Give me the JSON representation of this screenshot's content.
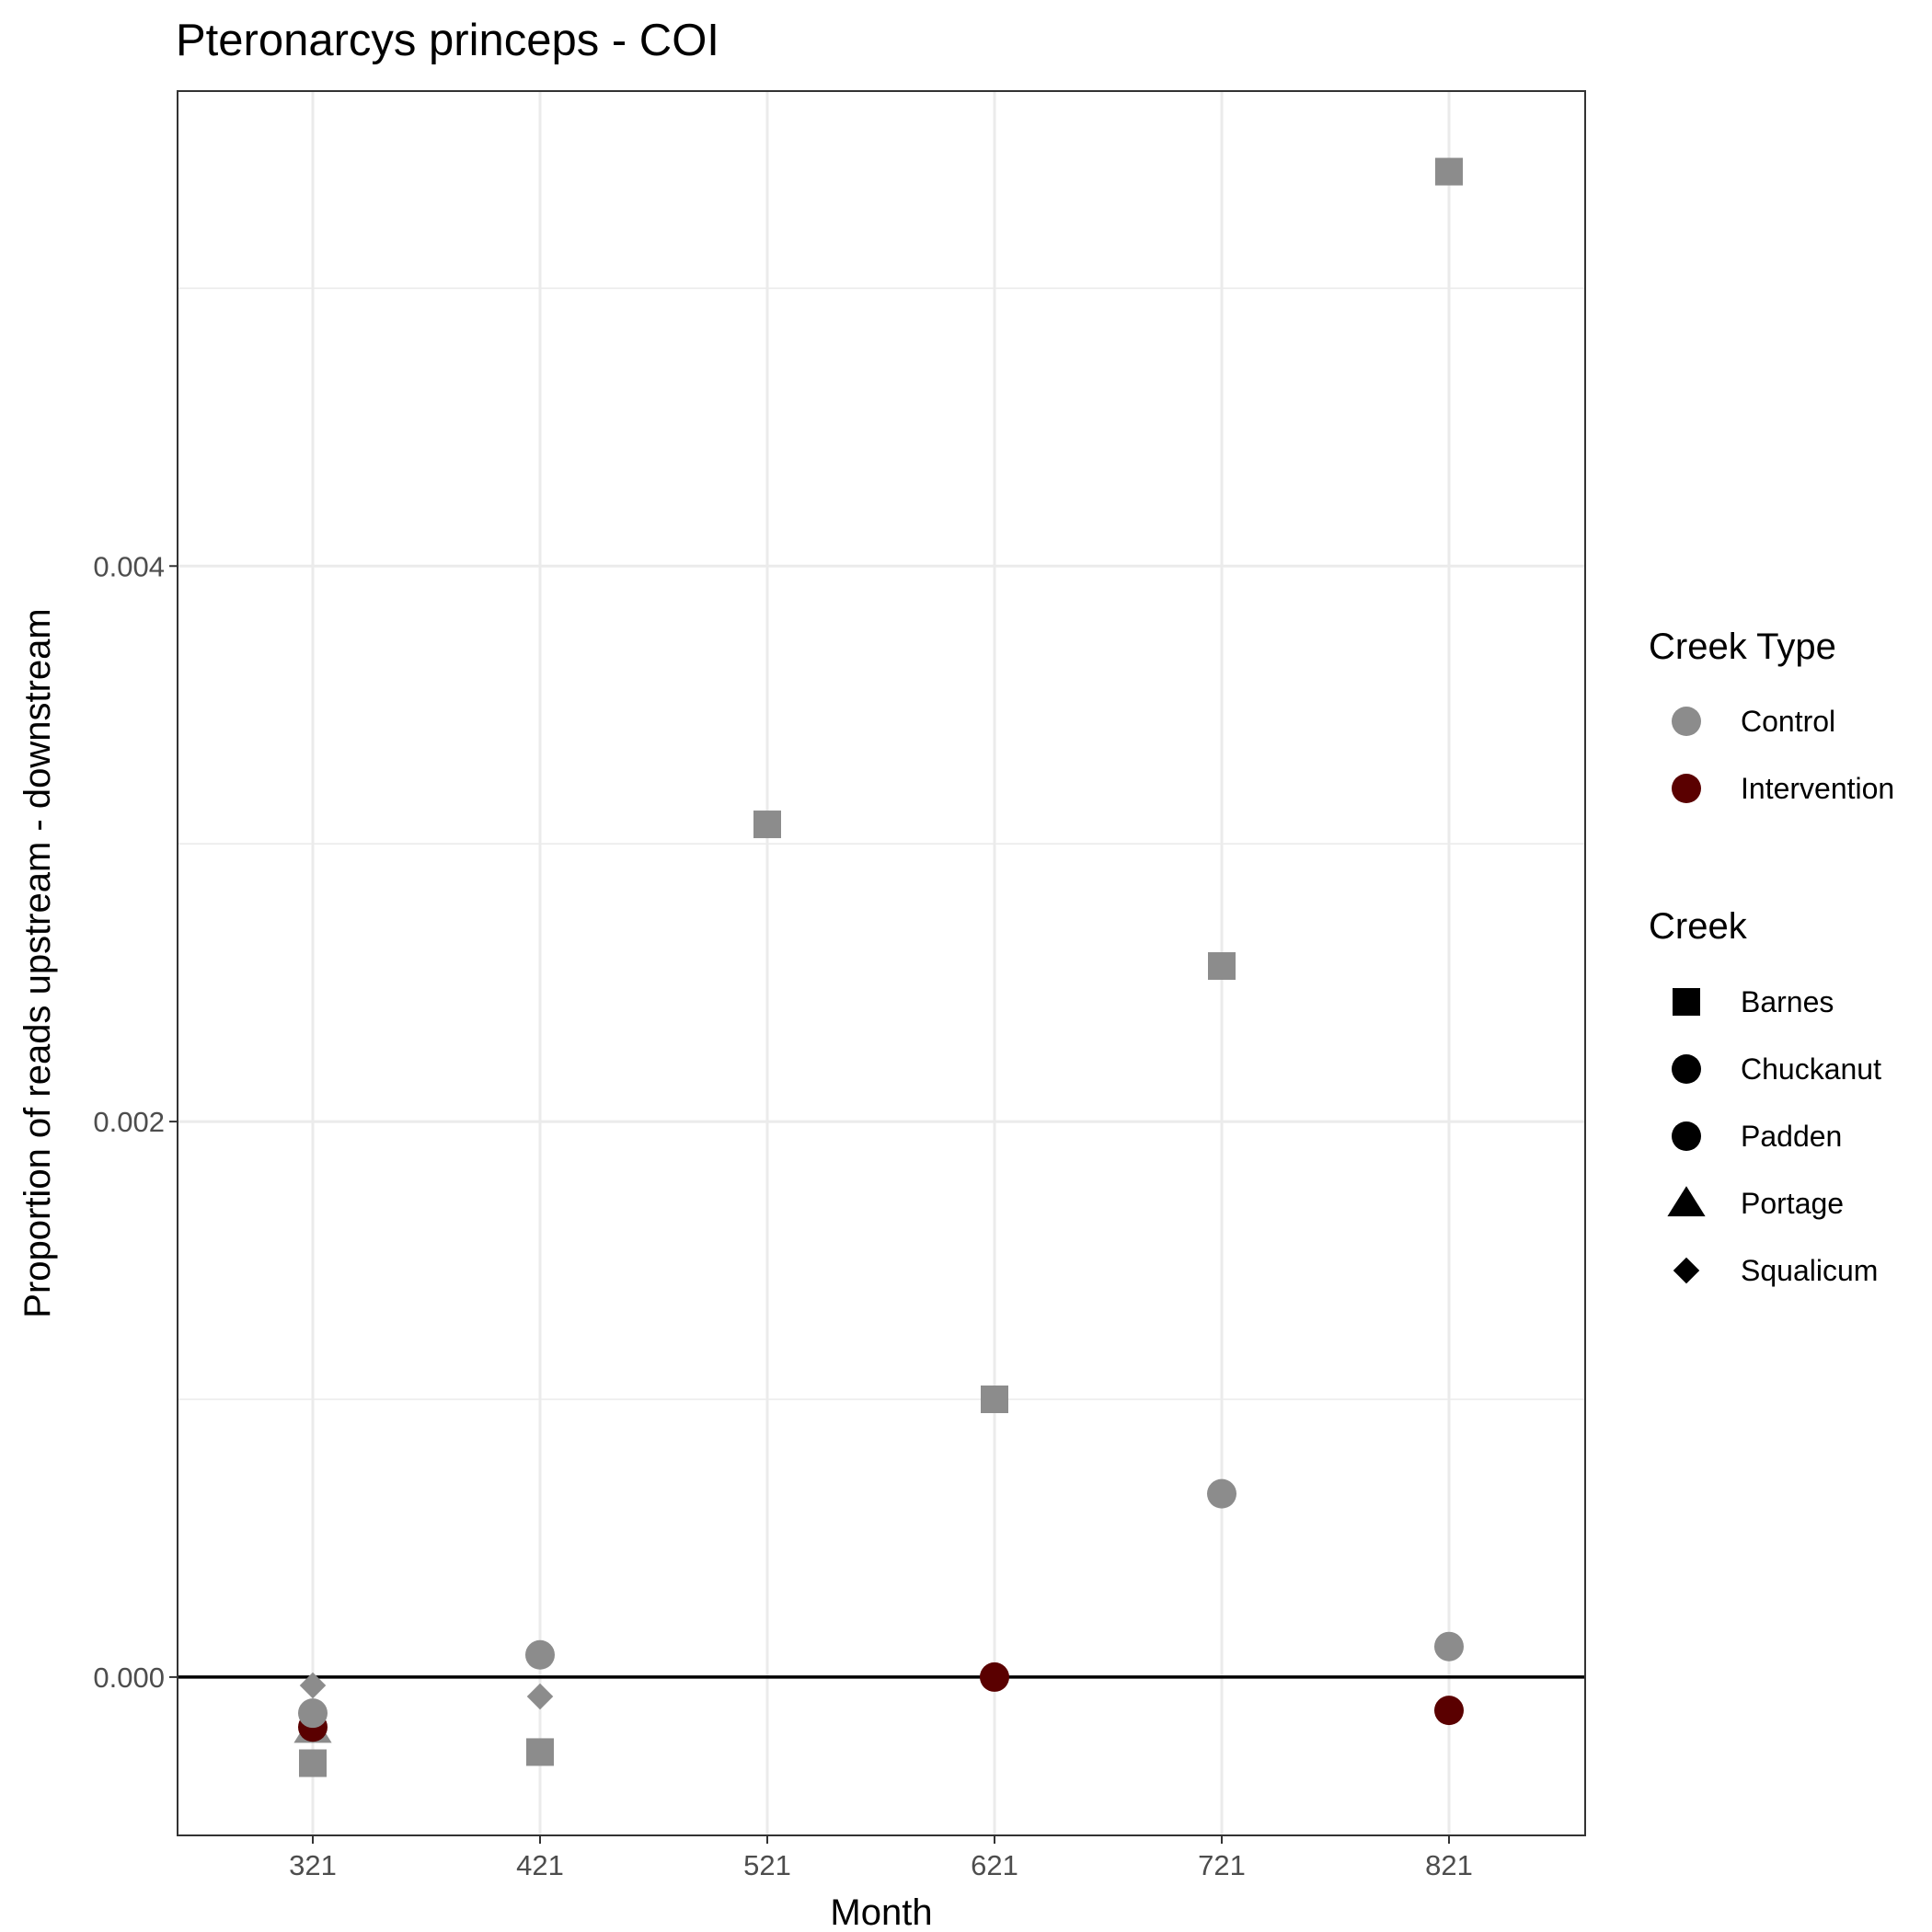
{
  "chart_data": {
    "type": "scatter",
    "title": "Pteronarcys princeps - COI",
    "xlabel": "Month",
    "ylabel": "Proportion of reads upstream - downstream",
    "x_ticks": [
      "321",
      "421",
      "521",
      "621",
      "721",
      "821"
    ],
    "y_ticks": [
      "0.000",
      "0.002",
      "0.004"
    ],
    "y_tick_values": [
      0,
      0.002,
      0.004
    ],
    "ylim": [
      -0.00057,
      0.00571
    ],
    "reference_line_y": 0,
    "grid": true,
    "legend_position": "right",
    "legends": {
      "color": {
        "title": "Creek Type",
        "entries": [
          {
            "label": "Control",
            "color": "#8c8c8c"
          },
          {
            "label": "Intervention",
            "color": "#5a0000"
          }
        ]
      },
      "shape": {
        "title": "Creek",
        "entries": [
          {
            "label": "Barnes",
            "shape": "square"
          },
          {
            "label": "Chuckanut",
            "shape": "circle"
          },
          {
            "label": "Padden",
            "shape": "circle"
          },
          {
            "label": "Portage",
            "shape": "triangle"
          },
          {
            "label": "Squalicum",
            "shape": "diamond"
          }
        ]
      }
    },
    "points": [
      {
        "month": "321",
        "y": -3e-05,
        "creek": "Squalicum",
        "creek_type": "Control"
      },
      {
        "month": "321",
        "y": -0.00019,
        "creek": "Portage",
        "creek_type": "Control"
      },
      {
        "month": "321",
        "y": -0.00018,
        "creek": "Padden",
        "creek_type": "Intervention"
      },
      {
        "month": "321",
        "y": -0.00013,
        "creek": "Chuckanut",
        "creek_type": "Control"
      },
      {
        "month": "321",
        "y": -0.00031,
        "creek": "Barnes",
        "creek_type": "Control"
      },
      {
        "month": "421",
        "y": 8e-05,
        "creek": "Chuckanut",
        "creek_type": "Control"
      },
      {
        "month": "421",
        "y": -7e-05,
        "creek": "Squalicum",
        "creek_type": "Control"
      },
      {
        "month": "421",
        "y": -0.00027,
        "creek": "Barnes",
        "creek_type": "Control"
      },
      {
        "month": "521",
        "y": 0.00307,
        "creek": "Barnes",
        "creek_type": "Control"
      },
      {
        "month": "621",
        "y": 0.001,
        "creek": "Barnes",
        "creek_type": "Control"
      },
      {
        "month": "621",
        "y": 0.0,
        "creek": "Padden",
        "creek_type": "Intervention"
      },
      {
        "month": "721",
        "y": 0.00256,
        "creek": "Barnes",
        "creek_type": "Control"
      },
      {
        "month": "721",
        "y": 0.00066,
        "creek": "Chuckanut",
        "creek_type": "Control"
      },
      {
        "month": "821",
        "y": 0.00542,
        "creek": "Barnes",
        "creek_type": "Control"
      },
      {
        "month": "821",
        "y": 0.00011,
        "creek": "Chuckanut",
        "creek_type": "Control"
      },
      {
        "month": "821",
        "y": -0.00012,
        "creek": "Padden",
        "creek_type": "Intervention"
      }
    ]
  }
}
